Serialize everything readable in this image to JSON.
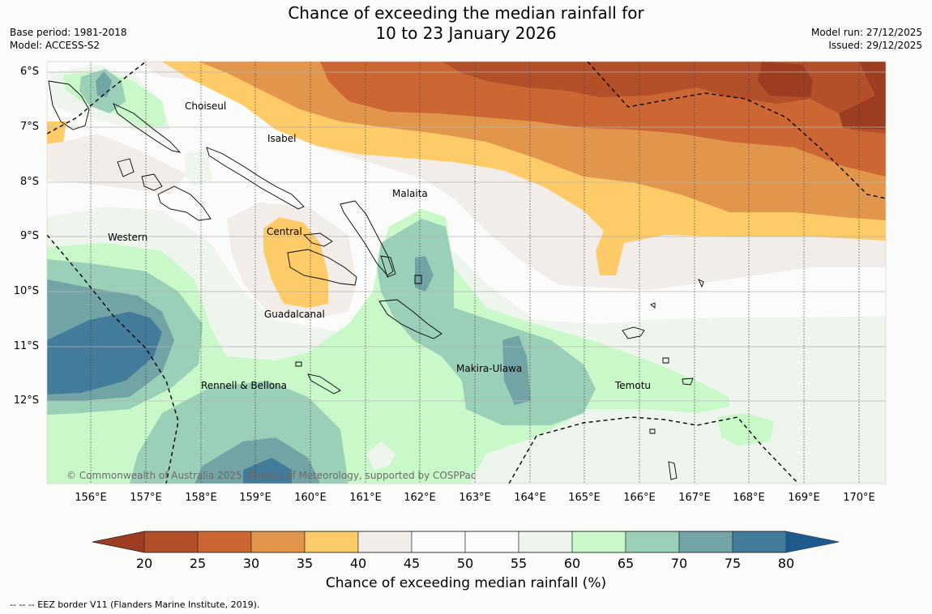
{
  "header": {
    "title_line1": "Chance of exceeding the median rainfall for",
    "title_line2": "10 to 23 January 2026",
    "base_period": "Base period: 1981-2018",
    "model": "Model: ACCESS-S2",
    "model_run": "Model run: 27/12/2025",
    "issued": "Issued: 29/12/2025"
  },
  "axes": {
    "lat_labels": [
      "6°S",
      "7°S",
      "8°S",
      "9°S",
      "10°S",
      "11°S",
      "12°S"
    ],
    "lon_labels": [
      "156°E",
      "157°E",
      "158°E",
      "159°E",
      "160°E",
      "161°E",
      "162°E",
      "163°E",
      "164°E",
      "165°E",
      "166°E",
      "167°E",
      "168°E",
      "169°E",
      "170°E"
    ]
  },
  "regions": {
    "choiseul": "Choiseul",
    "isabel": "Isabel",
    "malaita": "Malaita",
    "western": "Western",
    "central": "Central",
    "guadalcanal": "Guadalcanal",
    "rennell": "Rennell & Bellona",
    "makira": "Makira-Ulawa",
    "temotu": "Temotu"
  },
  "copyright": "© Commonwealth of Australia 2025, Bureau of Meteorology, supported by COSPPac",
  "colorbar": {
    "ticks": [
      "20",
      "25",
      "30",
      "35",
      "40",
      "45",
      "50",
      "55",
      "60",
      "65",
      "70",
      "75",
      "80"
    ],
    "colors": [
      "#9c3d22",
      "#b34f29",
      "#cc6733",
      "#e1964b",
      "#fdcb67",
      "#f2ede8",
      "#fbfcfa",
      "#fbfcfa",
      "#edf5ec",
      "#c9f9c9",
      "#9acfb8",
      "#72a4a6",
      "#437b9b",
      "#1e5a8c"
    ],
    "label": "Chance of exceeding median rainfall (%)"
  },
  "footer": {
    "eez_note": "--  --  -- EEZ border V11 (Flanders Marine Institute, 2019)."
  }
}
